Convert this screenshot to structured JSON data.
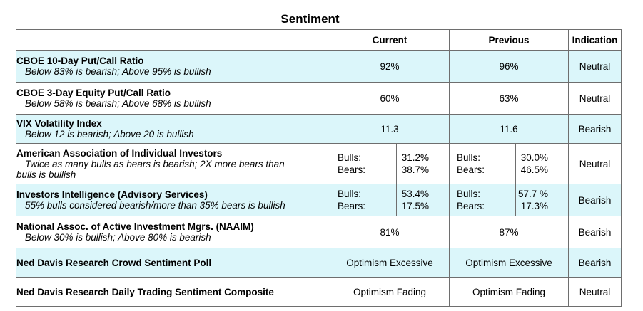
{
  "title": "Sentiment",
  "headers": {
    "indicator": "",
    "current": "Current",
    "previous": "Previous",
    "indication": "Indication"
  },
  "rows": [
    {
      "name": "CBOE 10-Day Put/Call Ratio",
      "desc": "Below 83% is bearish; Above 95% is bullish",
      "current": "92%",
      "previous": "96%",
      "indication": "Neutral"
    },
    {
      "name": "CBOE 3-Day Equity Put/Call Ratio",
      "desc": "Below 58% is bearish; Above 68% is bullish",
      "current": "60%",
      "previous": "63%",
      "indication": "Neutral"
    },
    {
      "name": "VIX Volatility Index",
      "desc": "Below 12 is bearish; Above 20 is bullish",
      "current": "11.3",
      "previous": "11.6",
      "indication": "Bearish"
    },
    {
      "name": "American Association of Individual Investors",
      "desc_line1": "Twice as many bulls as bears is bearish; 2X more bears than",
      "desc_line2": "bulls is bullish",
      "current": {
        "bulls_label": "Bulls:",
        "bulls": "31.2%",
        "bears_label": "Bears:",
        "bears": "38.7%"
      },
      "previous": {
        "bulls_label": "Bulls:",
        "bulls": "30.0%",
        "bears_label": "Bears:",
        "bears": "46.5%"
      },
      "indication": "Neutral"
    },
    {
      "name": "Investors Intelligence (Advisory Services)",
      "desc": "55% bulls considered bearish/more than 35% bears is bullish",
      "current": {
        "bulls_label": "Bulls:",
        "bulls": "53.4%",
        "bears_label": "Bears:",
        "bears": "17.5%"
      },
      "previous": {
        "bulls_label": "Bulls:",
        "bulls": "57.7 %",
        "bears_label": "Bears:",
        "bears": "17.3%"
      },
      "indication": "Bearish"
    },
    {
      "name": "National Assoc. of Active Investment Mgrs. (NAAIM)",
      "desc": "Below 30% is bullish; Above 80% is bearish",
      "current": "81%",
      "previous": "87%",
      "indication": "Bearish"
    },
    {
      "name": "Ned Davis Research Crowd Sentiment Poll",
      "current": "Optimism Excessive",
      "previous": "Optimism Excessive",
      "indication": "Bearish"
    },
    {
      "name": "Ned Davis Research Daily Trading Sentiment Composite",
      "current": "Optimism Fading",
      "previous": "Optimism Fading",
      "indication": "Neutral"
    }
  ],
  "colors": {
    "highlight_row": "#dbf6fa",
    "border": "#6e6e6e"
  }
}
